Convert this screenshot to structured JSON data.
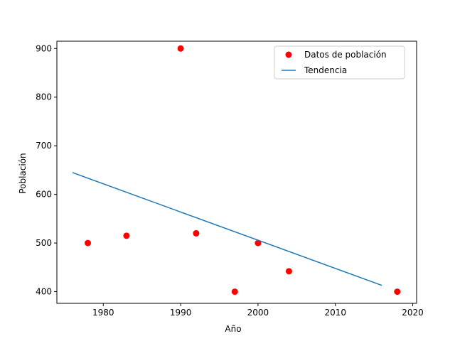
{
  "chart_data": {
    "type": "scatter",
    "xlabel": "Año",
    "ylabel": "Población",
    "xlim": [
      1974,
      2020.5
    ],
    "ylim": [
      376,
      915
    ],
    "xticks": [
      1980,
      1990,
      2000,
      2010,
      2020
    ],
    "yticks": [
      400,
      500,
      600,
      700,
      800,
      900
    ],
    "grid": false,
    "legend_position": "top-right",
    "series": [
      {
        "name": "Datos de población",
        "kind": "scatter",
        "color": "#ff0000",
        "x": [
          1978,
          1983,
          1990,
          1992,
          1997,
          2000,
          2004,
          2018
        ],
        "y": [
          500,
          515,
          900,
          520,
          400,
          500,
          442,
          400
        ]
      },
      {
        "name": "Tendencia",
        "kind": "line",
        "color": "#1f77b4",
        "x": [
          1976,
          2016
        ],
        "y": [
          645,
          413
        ]
      }
    ]
  }
}
